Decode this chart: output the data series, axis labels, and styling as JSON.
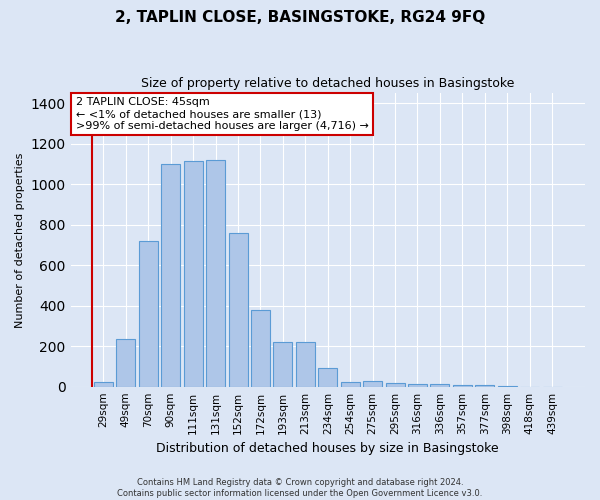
{
  "title": "2, TAPLIN CLOSE, BASINGSTOKE, RG24 9FQ",
  "subtitle": "Size of property relative to detached houses in Basingstoke",
  "xlabel": "Distribution of detached houses by size in Basingstoke",
  "ylabel": "Number of detached properties",
  "categories": [
    "29sqm",
    "49sqm",
    "70sqm",
    "90sqm",
    "111sqm",
    "131sqm",
    "152sqm",
    "172sqm",
    "193sqm",
    "213sqm",
    "234sqm",
    "254sqm",
    "275sqm",
    "295sqm",
    "316sqm",
    "336sqm",
    "357sqm",
    "377sqm",
    "398sqm",
    "418sqm",
    "439sqm"
  ],
  "values": [
    25,
    235,
    720,
    1100,
    1115,
    1120,
    760,
    380,
    220,
    220,
    90,
    25,
    30,
    20,
    15,
    13,
    10,
    8,
    5,
    0,
    0
  ],
  "bar_color": "#aec6e8",
  "bar_edge_color": "#5b9bd5",
  "highlight_color": "#cc0000",
  "annotation_box_color": "#ffffff",
  "annotation_box_edge_color": "#cc0000",
  "annotation_text_line1": "2 TAPLIN CLOSE: 45sqm",
  "annotation_text_line2": "← <1% of detached houses are smaller (13)",
  "annotation_text_line3": ">99% of semi-detached houses are larger (4,716) →",
  "ylim": [
    0,
    1450
  ],
  "yticks": [
    0,
    200,
    400,
    600,
    800,
    1000,
    1200,
    1400
  ],
  "background_color": "#dce6f5",
  "plot_background_color": "#dce6f5",
  "grid_color": "#ffffff",
  "title_fontsize": 11,
  "subtitle_fontsize": 9,
  "ylabel_fontsize": 8,
  "xlabel_fontsize": 9,
  "tick_fontsize": 7.5,
  "footer_line1": "Contains HM Land Registry data © Crown copyright and database right 2024.",
  "footer_line2": "Contains public sector information licensed under the Open Government Licence v3.0."
}
